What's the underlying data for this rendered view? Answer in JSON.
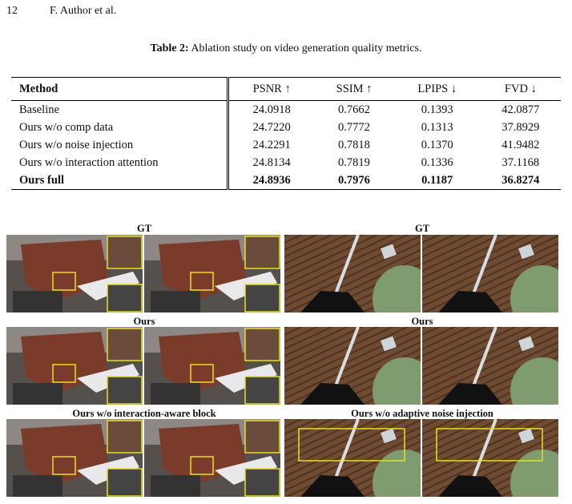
{
  "header": {
    "page_number": "12",
    "authors": "F. Author et al."
  },
  "table": {
    "caption_label": "Table 2:",
    "caption_text": "Ablation study on video generation quality metrics.",
    "columns": [
      "Method",
      "PSNR ↑",
      "SSIM ↑",
      "LPIPS ↓",
      "FVD ↓"
    ],
    "rows": [
      [
        "Baseline",
        "24.0918",
        "0.7662",
        "0.1393",
        "42.0877"
      ],
      [
        "Ours w/o comp data",
        "24.7220",
        "0.7772",
        "0.1313",
        "37.8929"
      ],
      [
        "Ours w/o noise injection",
        "24.2291",
        "0.7818",
        "0.1370",
        "41.9482"
      ],
      [
        "Ours w/o interaction attention",
        "24.8134",
        "0.7819",
        "0.1336",
        "37.1168"
      ],
      [
        "Ours full",
        "24.8936",
        "0.7976",
        "0.1187",
        "36.8274"
      ]
    ]
  },
  "figure": {
    "rows": [
      {
        "left_label": "GT",
        "right_label": "GT"
      },
      {
        "left_label": "Ours",
        "right_label": "Ours"
      },
      {
        "left_label": "Ours w/o interaction-aware block",
        "right_label": "Ours w/o adaptive noise injection"
      }
    ]
  }
}
